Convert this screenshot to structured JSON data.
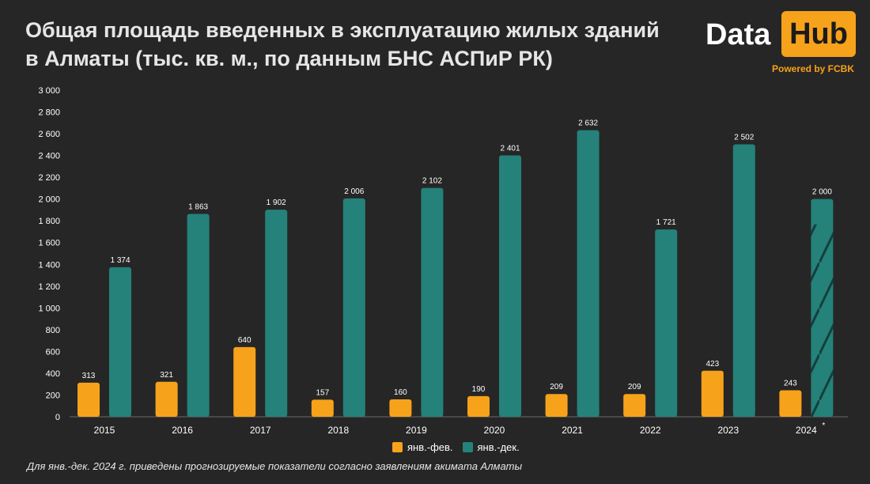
{
  "header": {
    "title_line1": "Общая площадь введенных в эксплуатацию жилых зданий",
    "title_line2": "в Алматы (тыс. кв. м., по данным БНС АСПиР РК)"
  },
  "brand": {
    "word": "Data",
    "badge": "Hub",
    "powered": "Powered by FCBK"
  },
  "footnote": "Для янв.-дек. 2024 г. приведены прогнозируемые показатели согласно заявлениям акимата Алматы",
  "colors": {
    "background": "#262626",
    "accent_orange": "#f7a21b",
    "teal": "#24827a",
    "hatch": "#143f3b"
  },
  "chart_data": {
    "type": "bar",
    "categories": [
      "2015",
      "2016",
      "2017",
      "2018",
      "2019",
      "2020",
      "2021",
      "2022",
      "2023",
      "2024"
    ],
    "category_marks": [
      "",
      "",
      "",
      "",
      "",
      "",
      "",
      "",
      "",
      "*"
    ],
    "series": [
      {
        "name": "янв.-фев.",
        "color": "#f7a21b",
        "values": [
          313,
          321,
          640,
          157,
          160,
          190,
          209,
          209,
          423,
          243
        ],
        "labels": [
          "313",
          "321",
          "640",
          "157",
          "160",
          "190",
          "209",
          "209",
          "423",
          "243"
        ]
      },
      {
        "name": "янв.-дек.",
        "color": "#24827a",
        "values": [
          1374,
          1863,
          1902,
          2006,
          2102,
          2401,
          2632,
          1721,
          2502,
          2000
        ],
        "labels": [
          "1 374",
          "1 863",
          "1 902",
          "2 006",
          "2 102",
          "2 401",
          "2 632",
          "1 721",
          "2 502",
          "2 000"
        ],
        "forecast_index": 9
      }
    ],
    "yticks": [
      "0",
      "200",
      "400",
      "600",
      "800",
      "1 000",
      "1 200",
      "1 400",
      "1 600",
      "1 800",
      "2 000",
      "2 200",
      "2 400",
      "2 600",
      "2 800",
      "3 000"
    ],
    "ylim": [
      0,
      3000
    ],
    "xlabel": "",
    "ylabel": "",
    "grid": false,
    "legend_position": "bottom-center"
  }
}
